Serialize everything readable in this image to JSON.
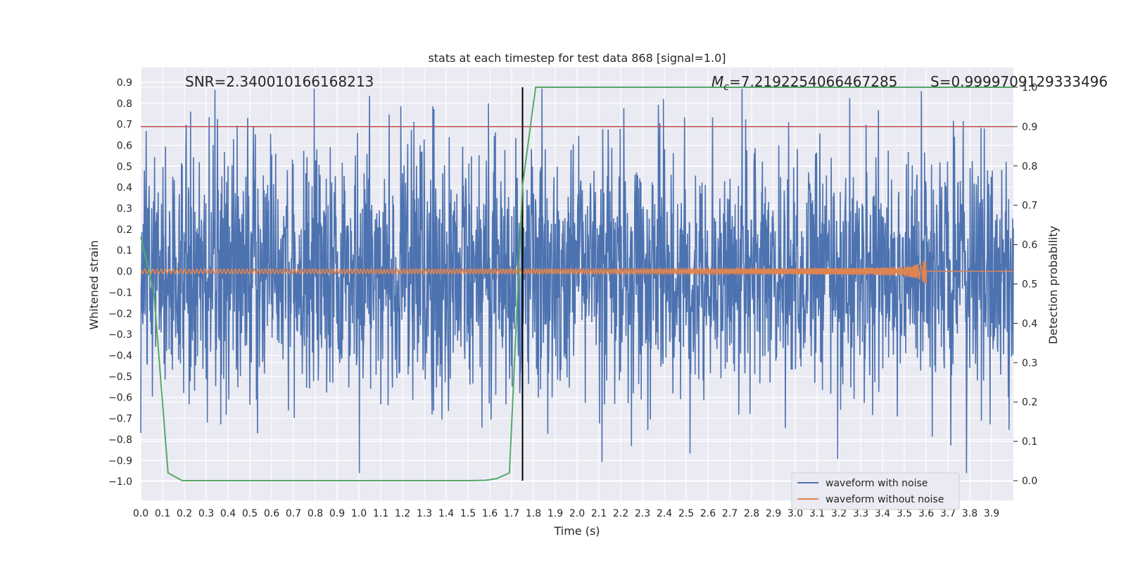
{
  "chart_data": {
    "type": "line",
    "title": "stats at each timestep for test data 868 [signal=1.0]",
    "xlabel": "Time (s)",
    "ylabel": "Whitened strain",
    "y2label": "Detection probability",
    "xlim": [
      0.0,
      4.0
    ],
    "ylim": [
      -1.09,
      0.97
    ],
    "y2lim": [
      -0.05,
      1.05
    ],
    "x_ticks": [
      "0.0",
      "0.1",
      "0.2",
      "0.3",
      "0.4",
      "0.5",
      "0.6",
      "0.7",
      "0.8",
      "0.9",
      "1.0",
      "1.1",
      "1.2",
      "1.3",
      "1.4",
      "1.5",
      "1.6",
      "1.7",
      "1.8",
      "1.9",
      "2.0",
      "2.1",
      "2.2",
      "2.3",
      "2.4",
      "2.5",
      "2.6",
      "2.7",
      "2.8",
      "2.9",
      "3.0",
      "3.1",
      "3.2",
      "3.3",
      "3.4",
      "3.5",
      "3.6",
      "3.7",
      "3.8",
      "3.9"
    ],
    "y_ticks": [
      "0.9",
      "0.8",
      "0.7",
      "0.6",
      "0.5",
      "0.4",
      "0.3",
      "0.2",
      "0.1",
      "0.0",
      "−0.1",
      "−0.2",
      "−0.3",
      "−0.4",
      "−0.5",
      "−0.6",
      "−0.7",
      "−0.8",
      "−0.9",
      "−1.0"
    ],
    "y2_ticks": [
      "1.0",
      "0.9",
      "0.8",
      "0.7",
      "0.6",
      "0.5",
      "0.4",
      "0.3",
      "0.2",
      "0.1",
      "0.0"
    ],
    "annotations": {
      "snr": "SNR=2.340010166168213",
      "mc": "=7.219225406646728 5",
      "mc_full": "=7.2192254066467285",
      "mc_symbol": "M",
      "mc_sub": "c",
      "s": "S=0.9999709129333496"
    },
    "series": [
      {
        "name": "waveform with noise",
        "color": "#4c72b0",
        "noise_amplitude": 0.3,
        "peak_max": 0.87,
        "peak_min": -0.96
      },
      {
        "name": "waveform without noise",
        "color": "#dd8452",
        "chirp_start": 0.0,
        "chirp_end": 3.6,
        "amp_start": 0.01,
        "amp_end": 0.07
      },
      {
        "name": "detection probability",
        "color": "#55a868",
        "x": [
          0.0,
          0.06,
          0.125,
          0.19,
          0.25,
          0.5,
          1.0,
          1.5,
          1.58,
          1.63,
          1.69,
          1.75,
          1.81,
          2.0,
          3.0,
          4.0
        ],
        "y": [
          0.62,
          0.48,
          0.02,
          0.0,
          0.0,
          0.0,
          0.0,
          0.0,
          0.001,
          0.005,
          0.02,
          0.75,
          1.0,
          1.0,
          1.0,
          1.0
        ]
      }
    ],
    "threshold_line": {
      "value": 0.9,
      "axis": "y2",
      "color": "#c44e52"
    },
    "vertical_line": {
      "x": 1.75,
      "color": "#000000"
    },
    "legend": {
      "position": "bottom-right",
      "entries": [
        "waveform with noise",
        "waveform without noise"
      ]
    },
    "grid": true
  }
}
